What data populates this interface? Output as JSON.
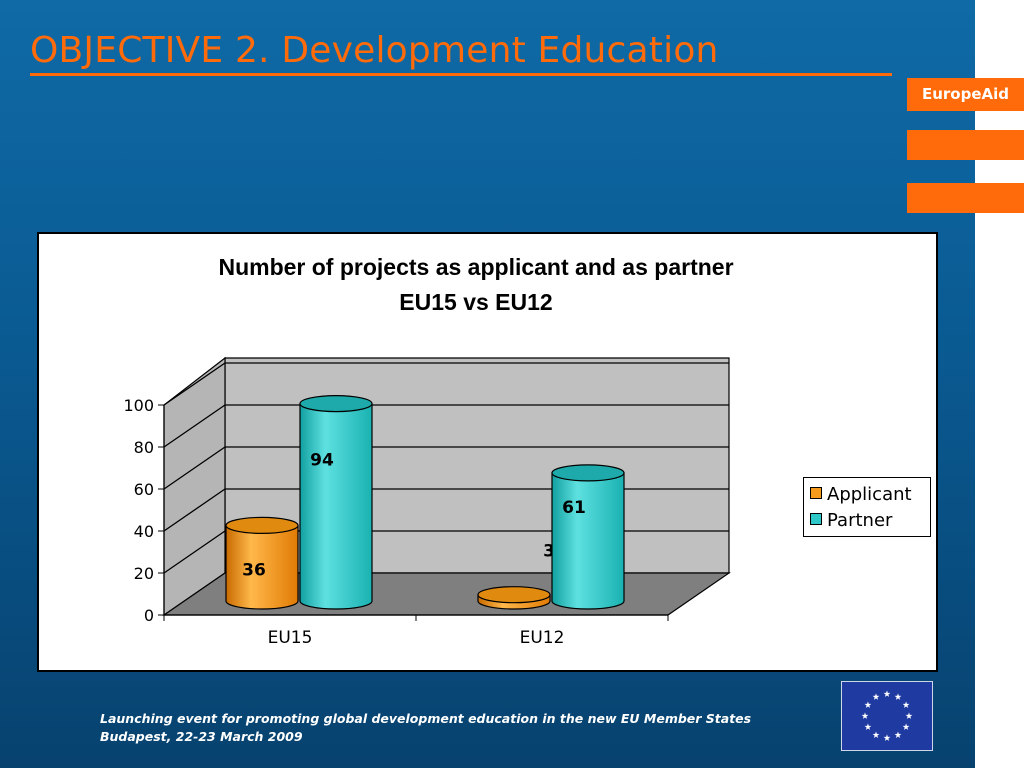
{
  "slide": {
    "title": "OBJECTIVE 2. Development Education",
    "brand": "EuropeAid",
    "footer_line1": "Launching event for promoting global development education in the new EU Member States",
    "footer_line2": "Budapest, 22-23 March 2009",
    "eu_flag_icon": "eu-stars-flag-icon",
    "colors": {
      "background": "#0a5a92",
      "accent": "#ff6b0a",
      "title": "#ff6b0a"
    }
  },
  "chart_data": {
    "type": "bar",
    "title": "Number of projects as applicant and as partner",
    "subtitle": "EU15 vs EU12",
    "categories": [
      "EU15",
      "EU12"
    ],
    "series": [
      {
        "name": "Applicant",
        "values": [
          36,
          3
        ],
        "color": "#f59a1c"
      },
      {
        "name": "Partner",
        "values": [
          94,
          61
        ],
        "color": "#2ec8c8"
      }
    ],
    "ylim": [
      0,
      100
    ],
    "yticks": [
      0,
      20,
      40,
      60,
      80,
      100
    ],
    "grid": true,
    "legend": "right",
    "style": "3d-cylinder"
  }
}
